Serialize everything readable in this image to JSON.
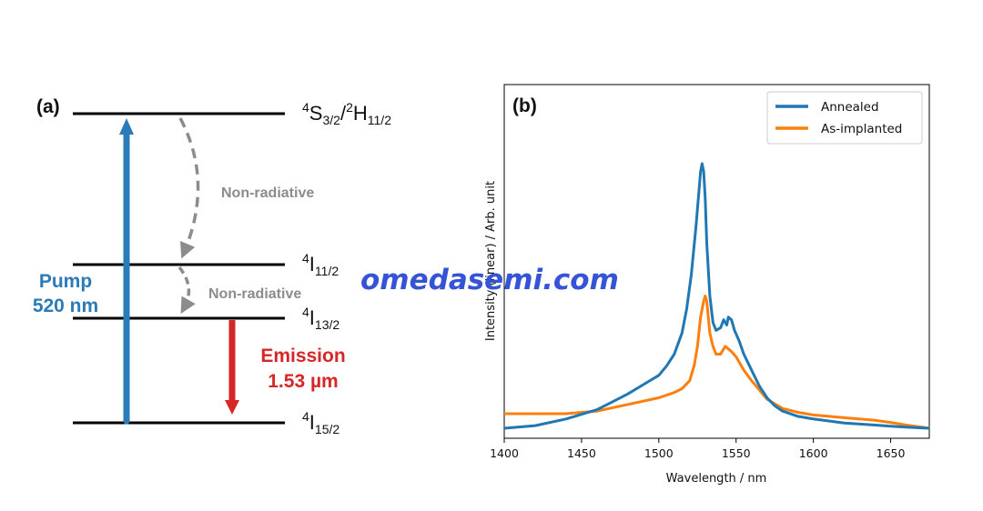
{
  "panel_a": {
    "label": "(a)",
    "levels": [
      {
        "sup1": "4",
        "base1": "S",
        "sub1": "3/2",
        "sep": "/",
        "sup2": "2",
        "base2": "H",
        "sub2": "11/2"
      },
      {
        "sup1": "4",
        "base1": "I",
        "sub1": "11/2"
      },
      {
        "sup1": "4",
        "base1": "I",
        "sub1": "13/2"
      },
      {
        "sup1": "4",
        "base1": "I",
        "sub1": "15/2"
      }
    ],
    "nonrad_upper": "Non-radiative",
    "nonrad_lower": "Non-radiative",
    "pump_line1": "Pump",
    "pump_line2": "520 nm",
    "emission_line1": "Emission",
    "emission_line2": "1.53 µm",
    "colors": {
      "pump": "#2b7bb9",
      "emission": "#d62728",
      "nonrad": "#8c8c8c",
      "levels": "#000000"
    }
  },
  "watermark": "omedasemi.com",
  "chart_data": {
    "type": "line",
    "label": "(b)",
    "xlabel": "Wavelength / nm",
    "ylabel": "Intensity (linear) / Arb. unit",
    "xlim": [
      1400,
      1675
    ],
    "ylim": [
      0,
      1.05
    ],
    "xticks": [
      1400,
      1450,
      1500,
      1550,
      1600,
      1650
    ],
    "yticks_shown": false,
    "legend_position": "top-right",
    "series": [
      {
        "name": "Annealed",
        "color": "#1f77b4",
        "x": [
          1400,
          1420,
          1440,
          1460,
          1470,
          1480,
          1490,
          1500,
          1505,
          1510,
          1515,
          1518,
          1521,
          1524,
          1526,
          1527,
          1528,
          1529,
          1530,
          1531,
          1533,
          1535,
          1537,
          1540,
          1542,
          1544,
          1545,
          1547,
          1549,
          1552,
          1555,
          1560,
          1565,
          1570,
          1575,
          1580,
          1590,
          1600,
          1620,
          1640,
          1650,
          1660,
          1675
        ],
        "y": [
          0.0,
          0.01,
          0.035,
          0.07,
          0.1,
          0.13,
          0.165,
          0.2,
          0.235,
          0.28,
          0.36,
          0.45,
          0.58,
          0.76,
          0.9,
          0.97,
          1.0,
          0.97,
          0.87,
          0.7,
          0.5,
          0.4,
          0.37,
          0.38,
          0.41,
          0.39,
          0.42,
          0.41,
          0.37,
          0.33,
          0.28,
          0.22,
          0.16,
          0.115,
          0.085,
          0.065,
          0.045,
          0.035,
          0.02,
          0.012,
          0.008,
          0.004,
          0.0
        ]
      },
      {
        "name": "As-implanted",
        "color": "#ff7f0e",
        "x": [
          1400,
          1420,
          1440,
          1460,
          1480,
          1500,
          1510,
          1515,
          1520,
          1523,
          1525,
          1527,
          1529,
          1530,
          1531,
          1533,
          1535,
          1537,
          1540,
          1543,
          1545,
          1547,
          1550,
          1555,
          1560,
          1570,
          1580,
          1590,
          1600,
          1620,
          1640,
          1650,
          1660,
          1675
        ],
        "y": [
          0.055,
          0.055,
          0.055,
          0.065,
          0.09,
          0.115,
          0.135,
          0.15,
          0.18,
          0.24,
          0.31,
          0.42,
          0.48,
          0.5,
          0.48,
          0.36,
          0.31,
          0.28,
          0.28,
          0.31,
          0.3,
          0.29,
          0.27,
          0.22,
          0.18,
          0.11,
          0.075,
          0.06,
          0.05,
          0.04,
          0.03,
          0.022,
          0.012,
          0.0
        ]
      }
    ]
  }
}
